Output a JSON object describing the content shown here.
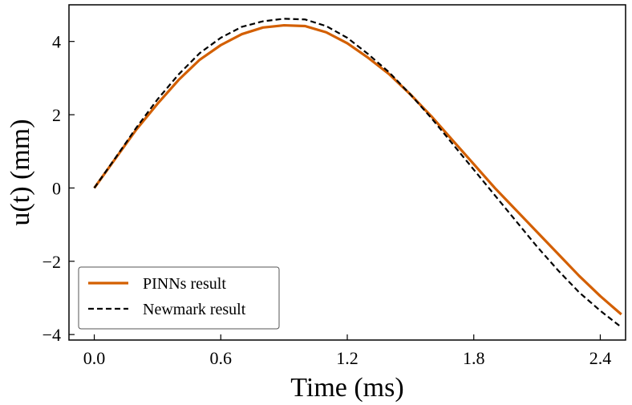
{
  "chart_data": {
    "type": "line",
    "title": "",
    "xlabel": "Time (ms)",
    "ylabel": "u(t) (mm)",
    "xlim": [
      -0.12,
      2.52
    ],
    "ylim": [
      -4.15,
      5.0
    ],
    "xticks": [
      0.0,
      0.6,
      1.2,
      1.8,
      2.4
    ],
    "xtick_labels": [
      "0.0",
      "0.6",
      "1.2",
      "1.8",
      "2.4"
    ],
    "yticks": [
      -4,
      -2,
      0,
      2,
      4
    ],
    "ytick_labels": [
      "−4",
      "−2",
      "0",
      "2",
      "4"
    ],
    "grid": false,
    "legend_position": "lower-left",
    "series": [
      {
        "name": "PINNs result",
        "color": "#d35f00",
        "style": "solid",
        "x": [
          0.0,
          0.1,
          0.2,
          0.3,
          0.4,
          0.5,
          0.6,
          0.7,
          0.8,
          0.9,
          1.0,
          1.1,
          1.2,
          1.3,
          1.4,
          1.5,
          1.6,
          1.7,
          1.8,
          1.9,
          2.0,
          2.1,
          2.2,
          2.3,
          2.4,
          2.5
        ],
        "y": [
          0.0,
          0.8,
          1.6,
          2.3,
          2.95,
          3.5,
          3.9,
          4.2,
          4.38,
          4.44,
          4.42,
          4.25,
          3.95,
          3.55,
          3.1,
          2.55,
          1.95,
          1.3,
          0.65,
          0.0,
          -0.6,
          -1.2,
          -1.8,
          -2.4,
          -2.95,
          -3.45
        ]
      },
      {
        "name": "Newmark result",
        "color": "#000000",
        "style": "dashed",
        "x": [
          0.0,
          0.1,
          0.2,
          0.3,
          0.4,
          0.5,
          0.6,
          0.7,
          0.8,
          0.9,
          1.0,
          1.1,
          1.2,
          1.3,
          1.4,
          1.5,
          1.6,
          1.7,
          1.8,
          1.9,
          2.0,
          2.1,
          2.2,
          2.3,
          2.4,
          2.5
        ],
        "y": [
          0.0,
          0.82,
          1.65,
          2.42,
          3.1,
          3.68,
          4.1,
          4.4,
          4.55,
          4.62,
          4.6,
          4.42,
          4.1,
          3.65,
          3.15,
          2.55,
          1.9,
          1.2,
          0.5,
          -0.2,
          -0.9,
          -1.6,
          -2.25,
          -2.85,
          -3.35,
          -3.8
        ]
      }
    ]
  }
}
